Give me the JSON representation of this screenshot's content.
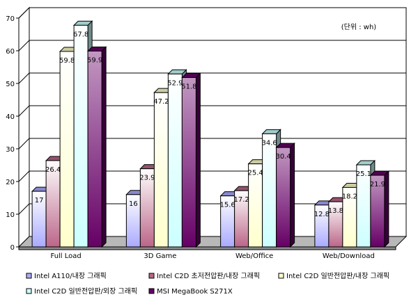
{
  "chart_data": {
    "type": "bar",
    "style": "3d-clustered",
    "unit_note": "(단위 : wh)",
    "categories": [
      "Full Load",
      "3D Game",
      "Web/Office",
      "Web/Download"
    ],
    "ylim": [
      0,
      70
    ],
    "yticks": [
      0,
      10,
      20,
      30,
      40,
      50,
      60,
      70
    ],
    "grid": true,
    "legend_position": "bottom",
    "series": [
      {
        "name": "Intel A110/내장 그래픽",
        "values": [
          17,
          16,
          15.6,
          12.8
        ],
        "labels": [
          "17",
          "16",
          "15.6",
          "12.8"
        ],
        "color": "#aaaaff"
      },
      {
        "name": "Intel C2D 초저전압판/내장 그래픽",
        "values": [
          26.4,
          23.9,
          17.2,
          13.8
        ],
        "labels": [
          "26.4",
          "23.9",
          "17.2",
          "13.8"
        ],
        "color": "#bb6688"
      },
      {
        "name": "Intel C2D 일반전압판/내장 그래픽",
        "values": [
          59.8,
          47.2,
          25.4,
          18.2
        ],
        "labels": [
          "59.8",
          "47.2",
          "25.4",
          "18.2"
        ],
        "color": "#ffffcc"
      },
      {
        "name": "Intel C2D 일반전압판/외장 그래픽",
        "values": [
          67.8,
          52.9,
          34.6,
          25.1
        ],
        "labels": [
          "67.8",
          "52.9",
          "34.6",
          "25.1"
        ],
        "color": "#ccffff"
      },
      {
        "name": "MSI MegaBook S271X",
        "values": [
          59.9,
          51.8,
          30.4,
          21.9
        ],
        "labels": [
          "59.9",
          "51.8",
          "30.4",
          "21.9"
        ],
        "color": "#660066"
      }
    ]
  }
}
